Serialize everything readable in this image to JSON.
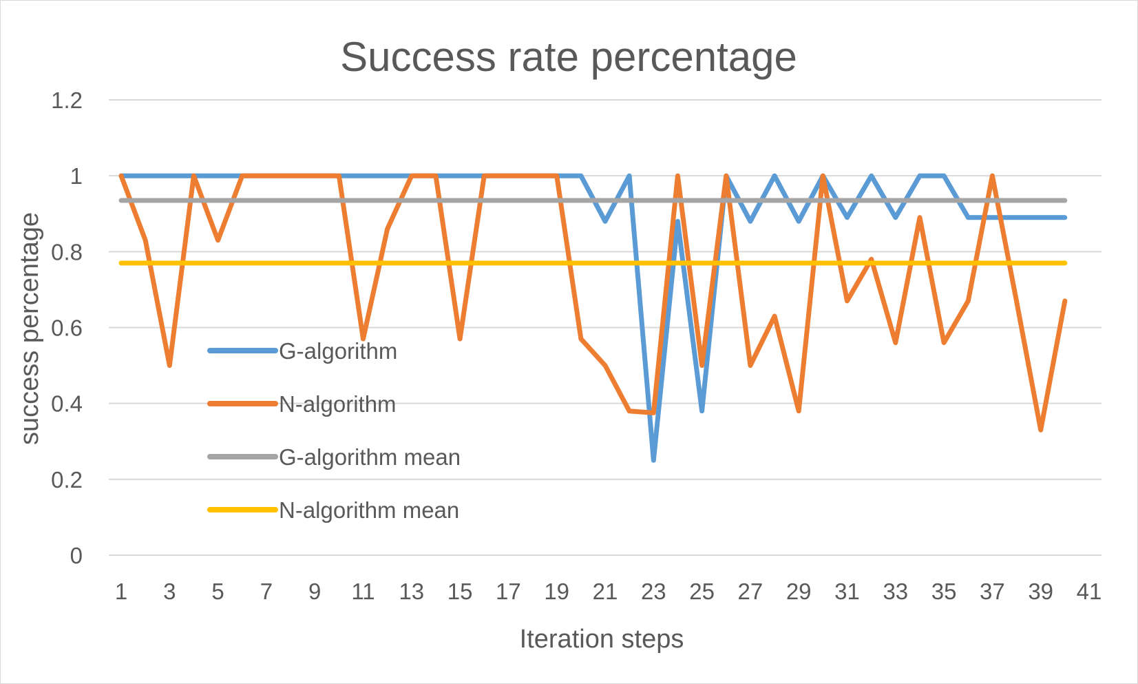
{
  "chart_data": {
    "type": "line",
    "title": "Success rate percentage",
    "xlabel": "Iteration steps",
    "ylabel": "success percentage",
    "x_ticks": [
      1,
      3,
      5,
      7,
      9,
      11,
      13,
      15,
      17,
      19,
      21,
      23,
      25,
      27,
      29,
      31,
      33,
      35,
      37,
      39,
      41
    ],
    "y_ticks": [
      "0",
      "0.2",
      "0.4",
      "0.6",
      "0.8",
      "1",
      "1.2"
    ],
    "xlim": [
      1,
      41
    ],
    "ylim": [
      0,
      1.2
    ],
    "grid": "horizontal",
    "legend_position": "left",
    "x": [
      1,
      2,
      3,
      4,
      5,
      6,
      7,
      8,
      9,
      10,
      11,
      12,
      13,
      14,
      15,
      16,
      17,
      18,
      19,
      20,
      21,
      22,
      23,
      24,
      25,
      26,
      27,
      28,
      29,
      30,
      31,
      32,
      33,
      34,
      35,
      36,
      37,
      38,
      39,
      40
    ],
    "series": [
      {
        "name": "G-algorithm",
        "color": "#5b9bd5",
        "values": [
          1,
          1,
          1,
          1,
          1,
          1,
          1,
          1,
          1,
          1,
          1,
          1,
          1,
          1,
          1,
          1,
          1,
          1,
          1,
          1,
          0.88,
          1,
          0.25,
          0.88,
          0.38,
          1,
          0.88,
          1,
          0.88,
          1,
          0.89,
          1,
          0.89,
          1,
          1,
          0.89,
          0.89,
          0.89,
          0.89,
          0.89
        ]
      },
      {
        "name": "N-algorithm",
        "color": "#ed7d31",
        "values": [
          1,
          0.83,
          0.5,
          1,
          0.83,
          1,
          1,
          1,
          1,
          1,
          0.57,
          0.86,
          1,
          1,
          0.57,
          1,
          1,
          1,
          1,
          0.57,
          0.5,
          0.38,
          0.375,
          1,
          0.5,
          1,
          0.5,
          0.63,
          0.38,
          1,
          0.67,
          0.78,
          0.56,
          0.89,
          0.56,
          0.67,
          1,
          0.67,
          0.33,
          0.67
        ]
      },
      {
        "name": "G-algorithm mean",
        "color": "#a5a5a5",
        "values": [
          0.935,
          0.935,
          0.935,
          0.935,
          0.935,
          0.935,
          0.935,
          0.935,
          0.935,
          0.935,
          0.935,
          0.935,
          0.935,
          0.935,
          0.935,
          0.935,
          0.935,
          0.935,
          0.935,
          0.935,
          0.935,
          0.935,
          0.935,
          0.935,
          0.935,
          0.935,
          0.935,
          0.935,
          0.935,
          0.935,
          0.935,
          0.935,
          0.935,
          0.935,
          0.935,
          0.935,
          0.935,
          0.935,
          0.935,
          0.935
        ]
      },
      {
        "name": "N-algorithm mean",
        "color": "#ffc000",
        "values": [
          0.77,
          0.77,
          0.77,
          0.77,
          0.77,
          0.77,
          0.77,
          0.77,
          0.77,
          0.77,
          0.77,
          0.77,
          0.77,
          0.77,
          0.77,
          0.77,
          0.77,
          0.77,
          0.77,
          0.77,
          0.77,
          0.77,
          0.77,
          0.77,
          0.77,
          0.77,
          0.77,
          0.77,
          0.77,
          0.77,
          0.77,
          0.77,
          0.77,
          0.77,
          0.77,
          0.77,
          0.77,
          0.77,
          0.77,
          0.77
        ]
      }
    ]
  }
}
